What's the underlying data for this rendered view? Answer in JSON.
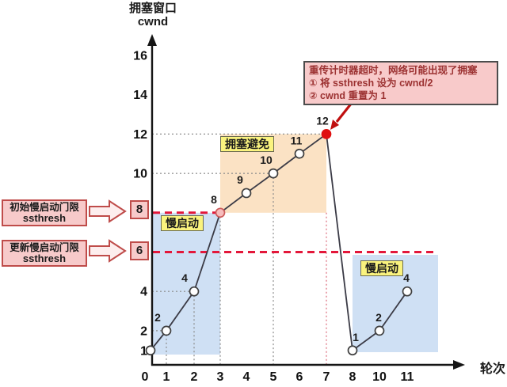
{
  "y_axis_title": {
    "line1": "拥塞窗口",
    "line2": "cwnd"
  },
  "x_axis_title": "轮次",
  "callout": {
    "lines": [
      "重传计时器超时，网络可能出现了拥塞",
      "① 将 ssthresh 设为 cwnd/2",
      "② cwnd 重置为 1"
    ]
  },
  "ssthresh_annotations": [
    {
      "title": "初始慢启动门限",
      "subtitle": "ssthresh",
      "value": "8"
    },
    {
      "title": "更新慢启动门限",
      "subtitle": "ssthresh",
      "value": "6"
    }
  ],
  "chart_data": {
    "type": "line",
    "xlabel": "轮次",
    "ylabel": "拥塞窗口 cwnd",
    "ylim": [
      0,
      17
    ],
    "x_tick_labels": [
      "0",
      "1",
      "2",
      "3",
      "4",
      "5",
      "6",
      "7",
      "8",
      "10",
      "11"
    ],
    "y_tick_values": [
      16,
      14,
      12,
      10,
      8,
      6,
      4,
      2,
      1
    ],
    "boxed_y_values": [
      8,
      6
    ],
    "points": [
      {
        "x_label": "0",
        "cwnd": 1,
        "point_label": "",
        "marker": "open"
      },
      {
        "x_label": "1",
        "cwnd": 2,
        "point_label": "2",
        "marker": "open"
      },
      {
        "x_label": "2",
        "cwnd": 4,
        "point_label": "4",
        "marker": "open"
      },
      {
        "x_label": "3",
        "cwnd": 8,
        "point_label": "8",
        "marker": "pink"
      },
      {
        "x_label": "4",
        "cwnd": 9,
        "point_label": "9",
        "marker": "open"
      },
      {
        "x_label": "5",
        "cwnd": 10,
        "point_label": "10",
        "marker": "open"
      },
      {
        "x_label": "6",
        "cwnd": 11,
        "point_label": "11",
        "marker": "open"
      },
      {
        "x_label": "7",
        "cwnd": 12,
        "point_label": "12",
        "marker": "red"
      },
      {
        "x_label": "8",
        "cwnd": 1,
        "point_label": "1",
        "marker": "open"
      },
      {
        "x_label": "10",
        "cwnd": 2,
        "point_label": "2",
        "marker": "open"
      },
      {
        "x_label": "11",
        "cwnd": 4,
        "point_label": "4",
        "marker": "open"
      }
    ],
    "phases": [
      {
        "label": "慢启动",
        "from_x": "0",
        "to_x": "3",
        "cwnd_from": 1,
        "cwnd_to": 8,
        "color": "#cfe0f4"
      },
      {
        "label": "拥塞避免",
        "from_x": "3",
        "to_x": "7",
        "cwnd_from": 8,
        "cwnd_to": 12,
        "color": "#fbe2c4"
      },
      {
        "label": "慢启动",
        "from_x": "8",
        "to_x": "11",
        "cwnd_from": 1,
        "cwnd_to": 6,
        "color": "#cfe0f4"
      }
    ],
    "threshold_lines": [
      {
        "value": 8,
        "name": "初始慢启动门限 ssthresh",
        "extent": "短：到第3轮"
      },
      {
        "value": 6,
        "name": "更新慢启动门限 ssthresh",
        "extent": "长：到第11轮"
      }
    ],
    "guides": {
      "vertical_at_x": [
        "1",
        "2",
        "3",
        "5"
      ],
      "vertical_red_at_x": [
        "7"
      ],
      "horizontal_at_cwnd": [
        2,
        4,
        10,
        12
      ]
    },
    "colors": {
      "threshold_dash": "#e3173a",
      "slow_start_fill": "#cfe0f4",
      "congestion_avoidance_fill": "#fbe2c4",
      "phase_label_bg": "#faf37e",
      "curve": "#3b3b46",
      "timeout_point": "#e01010",
      "pink_point": "#f6bdbd",
      "annotation_bg": "#f8caca",
      "annotation_text": "#9c3232",
      "guide_gray": "#8a8a8a",
      "guide_red": "#e0808e"
    }
  }
}
